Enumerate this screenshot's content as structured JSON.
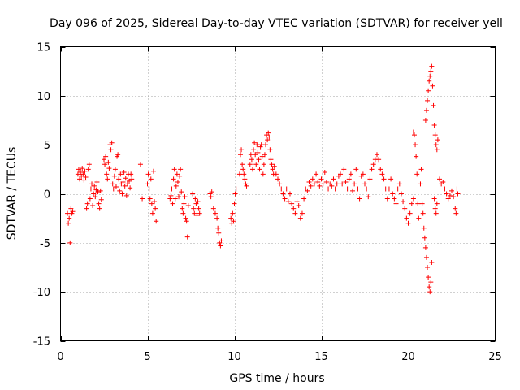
{
  "chart_data": {
    "type": "scatter",
    "title": "Day 096 of 2025, Sidereal Day-to-day VTEC variation (SDTVAR) for receiver yell",
    "xlabel": "GPS time / hours",
    "ylabel": "SDTVAR / TECUs",
    "xlim": [
      0,
      25
    ],
    "ylim": [
      -15,
      15
    ],
    "xticks": [
      0,
      5,
      10,
      15,
      20,
      25
    ],
    "yticks": [
      -15,
      -10,
      -5,
      0,
      5,
      10,
      15
    ],
    "xtick_labels": [
      "0",
      "5",
      "10",
      "15",
      "20",
      "25"
    ],
    "ytick_labels": [
      "-15",
      "-10",
      "-5",
      "0",
      "5",
      "10",
      "15"
    ],
    "grid": true,
    "marker": "plus",
    "series": [
      {
        "name": "SDTVAR",
        "color": "#ff0000",
        "points": [
          [
            0.4,
            -2.0
          ],
          [
            0.45,
            -3.0
          ],
          [
            0.5,
            -2.5
          ],
          [
            0.55,
            -5.0
          ],
          [
            0.6,
            -1.5
          ],
          [
            0.65,
            -2.0
          ],
          [
            0.7,
            -1.8
          ],
          [
            1.0,
            2.0
          ],
          [
            1.05,
            2.5
          ],
          [
            1.1,
            1.5
          ],
          [
            1.15,
            2.2
          ],
          [
            1.2,
            1.8
          ],
          [
            1.25,
            2.6
          ],
          [
            1.3,
            2.0
          ],
          [
            1.35,
            1.4
          ],
          [
            1.4,
            2.3
          ],
          [
            1.45,
            1.7
          ],
          [
            1.5,
            -1.5
          ],
          [
            1.55,
            -1.0
          ],
          [
            1.6,
            2.5
          ],
          [
            1.65,
            3.0
          ],
          [
            1.7,
            -0.5
          ],
          [
            1.75,
            0.5
          ],
          [
            1.8,
            1.0
          ],
          [
            1.85,
            -1.2
          ],
          [
            1.9,
            0.0
          ],
          [
            1.95,
            0.8
          ],
          [
            2.0,
            -0.3
          ],
          [
            2.05,
            0.4
          ],
          [
            2.1,
            1.2
          ],
          [
            2.15,
            0.2
          ],
          [
            2.2,
            -1.0
          ],
          [
            2.25,
            -1.5
          ],
          [
            2.3,
            0.3
          ],
          [
            2.35,
            -0.6
          ],
          [
            2.5,
            3.5
          ],
          [
            2.55,
            3.0
          ],
          [
            2.6,
            3.8
          ],
          [
            2.65,
            2.0
          ],
          [
            2.7,
            1.5
          ],
          [
            2.75,
            3.2
          ],
          [
            2.8,
            2.6
          ],
          [
            2.85,
            5.0
          ],
          [
            2.9,
            4.5
          ],
          [
            2.95,
            5.2
          ],
          [
            3.0,
            1.0
          ],
          [
            3.05,
            0.5
          ],
          [
            3.1,
            1.8
          ],
          [
            3.15,
            2.5
          ],
          [
            3.2,
            0.7
          ],
          [
            3.25,
            3.8
          ],
          [
            3.3,
            4.0
          ],
          [
            3.35,
            1.5
          ],
          [
            3.4,
            0.3
          ],
          [
            3.45,
            2.0
          ],
          [
            3.5,
            1.0
          ],
          [
            3.55,
            0.0
          ],
          [
            3.6,
            1.2
          ],
          [
            3.65,
            2.2
          ],
          [
            3.7,
            0.8
          ],
          [
            3.75,
            1.6
          ],
          [
            3.8,
            -0.2
          ],
          [
            3.85,
            1.0
          ],
          [
            3.9,
            2.0
          ],
          [
            3.95,
            1.3
          ],
          [
            4.0,
            0.6
          ],
          [
            4.05,
            2.0
          ],
          [
            4.1,
            1.5
          ],
          [
            4.6,
            3.0
          ],
          [
            4.7,
            -0.5
          ],
          [
            5.0,
            1.0
          ],
          [
            5.05,
            2.0
          ],
          [
            5.1,
            0.5
          ],
          [
            5.15,
            -0.5
          ],
          [
            5.2,
            1.5
          ],
          [
            5.25,
            -1.0
          ],
          [
            5.3,
            -2.0
          ],
          [
            5.35,
            2.3
          ],
          [
            5.4,
            -0.8
          ],
          [
            5.45,
            -1.5
          ],
          [
            5.5,
            -2.8
          ],
          [
            6.3,
            -0.5
          ],
          [
            6.35,
            -0.2
          ],
          [
            6.4,
            0.5
          ],
          [
            6.45,
            -1.0
          ],
          [
            6.5,
            1.5
          ],
          [
            6.55,
            2.5
          ],
          [
            6.6,
            -0.5
          ],
          [
            6.65,
            0.8
          ],
          [
            6.7,
            2.0
          ],
          [
            6.75,
            1.2
          ],
          [
            6.8,
            -0.3
          ],
          [
            6.85,
            1.8
          ],
          [
            6.9,
            2.5
          ],
          [
            6.95,
            0.2
          ],
          [
            7.0,
            -1.5
          ],
          [
            7.05,
            -2.0
          ],
          [
            7.1,
            -1.0
          ],
          [
            7.15,
            -0.3
          ],
          [
            7.2,
            -2.5
          ],
          [
            7.25,
            -2.8
          ],
          [
            7.3,
            -4.4
          ],
          [
            7.35,
            -1.2
          ],
          [
            7.6,
            0.0
          ],
          [
            7.65,
            -1.5
          ],
          [
            7.7,
            -2.0
          ],
          [
            7.75,
            -0.5
          ],
          [
            7.8,
            -1.0
          ],
          [
            7.85,
            -2.2
          ],
          [
            7.9,
            -0.8
          ],
          [
            7.95,
            -1.5
          ],
          [
            8.0,
            -2.0
          ],
          [
            8.6,
            0.0
          ],
          [
            8.65,
            -0.3
          ],
          [
            8.7,
            0.2
          ],
          [
            8.8,
            -1.5
          ],
          [
            8.9,
            -2.0
          ],
          [
            9.0,
            -2.5
          ],
          [
            9.05,
            -3.5
          ],
          [
            9.1,
            -4.0
          ],
          [
            9.15,
            -5.0
          ],
          [
            9.2,
            -5.3
          ],
          [
            9.25,
            -4.8
          ],
          [
            9.8,
            -2.5
          ],
          [
            9.85,
            -3.0
          ],
          [
            9.9,
            -2.0
          ],
          [
            9.95,
            -2.8
          ],
          [
            10.0,
            -1.0
          ],
          [
            10.05,
            0.0
          ],
          [
            10.1,
            0.5
          ],
          [
            10.3,
            2.0
          ],
          [
            10.35,
            4.0
          ],
          [
            10.4,
            4.5
          ],
          [
            10.45,
            3.0
          ],
          [
            10.5,
            2.5
          ],
          [
            10.55,
            2.0
          ],
          [
            10.6,
            1.5
          ],
          [
            10.65,
            1.0
          ],
          [
            10.7,
            0.8
          ],
          [
            10.9,
            3.0
          ],
          [
            10.95,
            4.0
          ],
          [
            11.0,
            3.5
          ],
          [
            11.05,
            2.5
          ],
          [
            11.1,
            4.5
          ],
          [
            11.15,
            5.2
          ],
          [
            11.2,
            4.0
          ],
          [
            11.25,
            3.0
          ],
          [
            11.3,
            5.0
          ],
          [
            11.35,
            4.2
          ],
          [
            11.4,
            3.5
          ],
          [
            11.45,
            2.5
          ],
          [
            11.5,
            4.8
          ],
          [
            11.55,
            5.0
          ],
          [
            11.6,
            3.8
          ],
          [
            11.65,
            2.0
          ],
          [
            11.7,
            3.0
          ],
          [
            11.75,
            4.0
          ],
          [
            11.8,
            5.0
          ],
          [
            11.85,
            6.0
          ],
          [
            11.9,
            5.5
          ],
          [
            11.95,
            6.2
          ],
          [
            12.0,
            5.8
          ],
          [
            12.05,
            4.5
          ],
          [
            12.1,
            3.5
          ],
          [
            12.15,
            3.0
          ],
          [
            12.2,
            2.5
          ],
          [
            12.25,
            2.0
          ],
          [
            12.3,
            2.8
          ],
          [
            12.4,
            2.0
          ],
          [
            12.5,
            1.5
          ],
          [
            12.6,
            1.0
          ],
          [
            12.7,
            0.5
          ],
          [
            12.8,
            0.0
          ],
          [
            12.9,
            -0.5
          ],
          [
            13.0,
            0.5
          ],
          [
            13.1,
            -0.8
          ],
          [
            13.2,
            0.0
          ],
          [
            13.3,
            -1.0
          ],
          [
            13.4,
            -1.5
          ],
          [
            13.5,
            -2.0
          ],
          [
            13.6,
            -0.8
          ],
          [
            13.7,
            -1.2
          ],
          [
            13.8,
            -2.5
          ],
          [
            13.9,
            -2.0
          ],
          [
            14.0,
            -0.5
          ],
          [
            14.1,
            0.5
          ],
          [
            14.2,
            0.3
          ],
          [
            14.3,
            1.2
          ],
          [
            14.4,
            0.8
          ],
          [
            14.5,
            1.5
          ],
          [
            14.6,
            1.0
          ],
          [
            14.7,
            2.0
          ],
          [
            14.8,
            1.2
          ],
          [
            14.9,
            0.8
          ],
          [
            15.0,
            1.5
          ],
          [
            15.1,
            1.0
          ],
          [
            15.2,
            2.2
          ],
          [
            15.3,
            1.2
          ],
          [
            15.4,
            0.5
          ],
          [
            15.5,
            1.0
          ],
          [
            15.6,
            0.8
          ],
          [
            15.7,
            1.5
          ],
          [
            15.8,
            0.5
          ],
          [
            15.9,
            1.0
          ],
          [
            16.0,
            1.8
          ],
          [
            16.1,
            2.0
          ],
          [
            16.2,
            1.0
          ],
          [
            16.3,
            2.5
          ],
          [
            16.4,
            1.2
          ],
          [
            16.5,
            0.5
          ],
          [
            16.6,
            1.5
          ],
          [
            16.7,
            2.0
          ],
          [
            16.8,
            0.3
          ],
          [
            16.9,
            1.0
          ],
          [
            17.0,
            2.5
          ],
          [
            17.1,
            0.5
          ],
          [
            17.2,
            -0.5
          ],
          [
            17.3,
            1.8
          ],
          [
            17.4,
            2.0
          ],
          [
            17.5,
            1.0
          ],
          [
            17.6,
            0.5
          ],
          [
            17.7,
            -0.3
          ],
          [
            17.8,
            1.5
          ],
          [
            17.9,
            2.5
          ],
          [
            18.0,
            3.0
          ],
          [
            18.1,
            3.5
          ],
          [
            18.2,
            4.0
          ],
          [
            18.3,
            3.5
          ],
          [
            18.4,
            2.5
          ],
          [
            18.5,
            2.0
          ],
          [
            18.6,
            1.5
          ],
          [
            18.7,
            0.5
          ],
          [
            18.8,
            -0.5
          ],
          [
            18.9,
            0.5
          ],
          [
            19.0,
            1.5
          ],
          [
            19.1,
            0.0
          ],
          [
            19.2,
            -0.5
          ],
          [
            19.3,
            -1.0
          ],
          [
            19.4,
            0.5
          ],
          [
            19.5,
            1.0
          ],
          [
            19.6,
            0.0
          ],
          [
            19.7,
            -0.8
          ],
          [
            19.8,
            -1.5
          ],
          [
            19.9,
            -2.5
          ],
          [
            20.0,
            -3.0
          ],
          [
            20.1,
            -2.0
          ],
          [
            20.2,
            -1.0
          ],
          [
            20.3,
            -0.5
          ],
          [
            20.3,
            6.3
          ],
          [
            20.35,
            6.0
          ],
          [
            20.4,
            5.0
          ],
          [
            20.45,
            3.8
          ],
          [
            20.5,
            2.0
          ],
          [
            20.55,
            -1.0
          ],
          [
            20.6,
            -2.5
          ],
          [
            20.7,
            1.0
          ],
          [
            20.75,
            2.5
          ],
          [
            20.8,
            -1.0
          ],
          [
            20.85,
            -2.0
          ],
          [
            20.9,
            -3.5
          ],
          [
            20.95,
            -4.5
          ],
          [
            21.0,
            -5.5
          ],
          [
            21.05,
            -6.5
          ],
          [
            21.1,
            -7.5
          ],
          [
            21.15,
            -8.5
          ],
          [
            21.2,
            -9.5
          ],
          [
            21.25,
            -10.0
          ],
          [
            21.3,
            -9.0
          ],
          [
            21.35,
            -7.0
          ],
          [
            21.0,
            7.5
          ],
          [
            21.05,
            8.5
          ],
          [
            21.1,
            9.5
          ],
          [
            21.15,
            10.5
          ],
          [
            21.2,
            11.5
          ],
          [
            21.25,
            12.0
          ],
          [
            21.3,
            12.5
          ],
          [
            21.35,
            13.0
          ],
          [
            21.4,
            11.0
          ],
          [
            21.45,
            9.0
          ],
          [
            21.5,
            7.0
          ],
          [
            21.55,
            6.0
          ],
          [
            21.6,
            5.0
          ],
          [
            21.65,
            4.5
          ],
          [
            21.7,
            5.5
          ],
          [
            21.5,
            -0.5
          ],
          [
            21.55,
            -1.5
          ],
          [
            21.6,
            -2.0
          ],
          [
            21.65,
            -1.0
          ],
          [
            21.8,
            1.5
          ],
          [
            21.9,
            1.0
          ],
          [
            22.0,
            1.2
          ],
          [
            22.1,
            0.5
          ],
          [
            22.2,
            0.0
          ],
          [
            22.3,
            -0.5
          ],
          [
            22.4,
            -0.2
          ],
          [
            22.5,
            0.3
          ],
          [
            22.6,
            -0.3
          ],
          [
            22.7,
            -1.5
          ],
          [
            22.75,
            -2.0
          ],
          [
            22.8,
            0.5
          ],
          [
            22.85,
            0.0
          ]
        ]
      }
    ]
  }
}
